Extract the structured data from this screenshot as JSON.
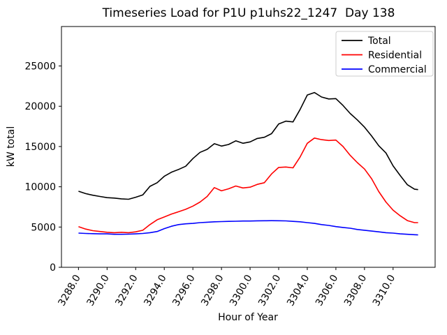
{
  "chart_data": {
    "type": "line",
    "title": "Timeseries Load for P1U p1uhs22_1247  Day 138",
    "xlabel": "Hour of Year",
    "ylabel": "kW total",
    "xlim": [
      3286.81,
      3312.94
    ],
    "ylim": [
      0,
      29900
    ],
    "grid": false,
    "legend_position": "upper right",
    "xtick_values": [
      3288,
      3290,
      3292,
      3294,
      3296,
      3298,
      3300,
      3302,
      3304,
      3306,
      3308,
      3310
    ],
    "xtick_labels": [
      "3288.0",
      "3290.0",
      "3292.0",
      "3294.0",
      "3296.0",
      "3298.0",
      "3300.0",
      "3302.0",
      "3304.0",
      "3306.0",
      "3308.0",
      "3310.0"
    ],
    "ytick_values": [
      0,
      5000,
      10000,
      15000,
      20000,
      25000
    ],
    "ytick_labels": [
      "0",
      "5000",
      "10000",
      "15000",
      "20000",
      "25000"
    ],
    "x": [
      3288.0,
      3288.5,
      3289.0,
      3289.5,
      3290.0,
      3290.5,
      3291.0,
      3291.5,
      3292.0,
      3292.5,
      3293.0,
      3293.5,
      3294.0,
      3294.5,
      3295.0,
      3295.5,
      3296.0,
      3296.5,
      3297.0,
      3297.5,
      3298.0,
      3298.5,
      3299.0,
      3299.5,
      3300.0,
      3300.5,
      3301.0,
      3301.5,
      3302.0,
      3302.5,
      3303.0,
      3303.5,
      3304.0,
      3304.5,
      3305.0,
      3305.5,
      3306.0,
      3306.5,
      3307.0,
      3307.5,
      3308.0,
      3308.5,
      3309.0,
      3309.5,
      3310.0,
      3310.5,
      3311.0,
      3311.5,
      3311.75
    ],
    "series": [
      {
        "name": "Total",
        "color": "#000000",
        "values": [
          9450,
          9150,
          8950,
          8800,
          8650,
          8600,
          8500,
          8450,
          8700,
          9000,
          10050,
          10500,
          11300,
          11800,
          12150,
          12550,
          13500,
          14270,
          14650,
          15350,
          15050,
          15250,
          15700,
          15400,
          15570,
          16000,
          16150,
          16600,
          17800,
          18150,
          18050,
          19600,
          21400,
          21700,
          21150,
          20900,
          20950,
          20100,
          19100,
          18300,
          17400,
          16300,
          15100,
          14200,
          12600,
          11400,
          10250,
          9700,
          9650
        ]
      },
      {
        "name": "Residential",
        "color": "#ff0000",
        "values": [
          5050,
          4750,
          4550,
          4450,
          4350,
          4300,
          4350,
          4300,
          4400,
          4600,
          5300,
          5900,
          6250,
          6600,
          6900,
          7200,
          7600,
          8100,
          8800,
          9900,
          9500,
          9750,
          10100,
          9850,
          9950,
          10300,
          10500,
          11600,
          12400,
          12450,
          12350,
          13700,
          15400,
          16050,
          15850,
          15750,
          15800,
          15000,
          13900,
          13000,
          12200,
          11000,
          9400,
          8100,
          7100,
          6400,
          5800,
          5550,
          5550
        ]
      },
      {
        "name": "Commercial",
        "color": "#0000ff",
        "values": [
          4250,
          4200,
          4180,
          4150,
          4150,
          4100,
          4100,
          4120,
          4150,
          4200,
          4300,
          4450,
          4800,
          5100,
          5300,
          5400,
          5450,
          5550,
          5600,
          5650,
          5680,
          5700,
          5720,
          5750,
          5750,
          5770,
          5780,
          5790,
          5780,
          5760,
          5700,
          5650,
          5550,
          5450,
          5300,
          5200,
          5050,
          4950,
          4850,
          4700,
          4600,
          4500,
          4400,
          4300,
          4250,
          4150,
          4100,
          4050,
          4020
        ]
      }
    ]
  }
}
